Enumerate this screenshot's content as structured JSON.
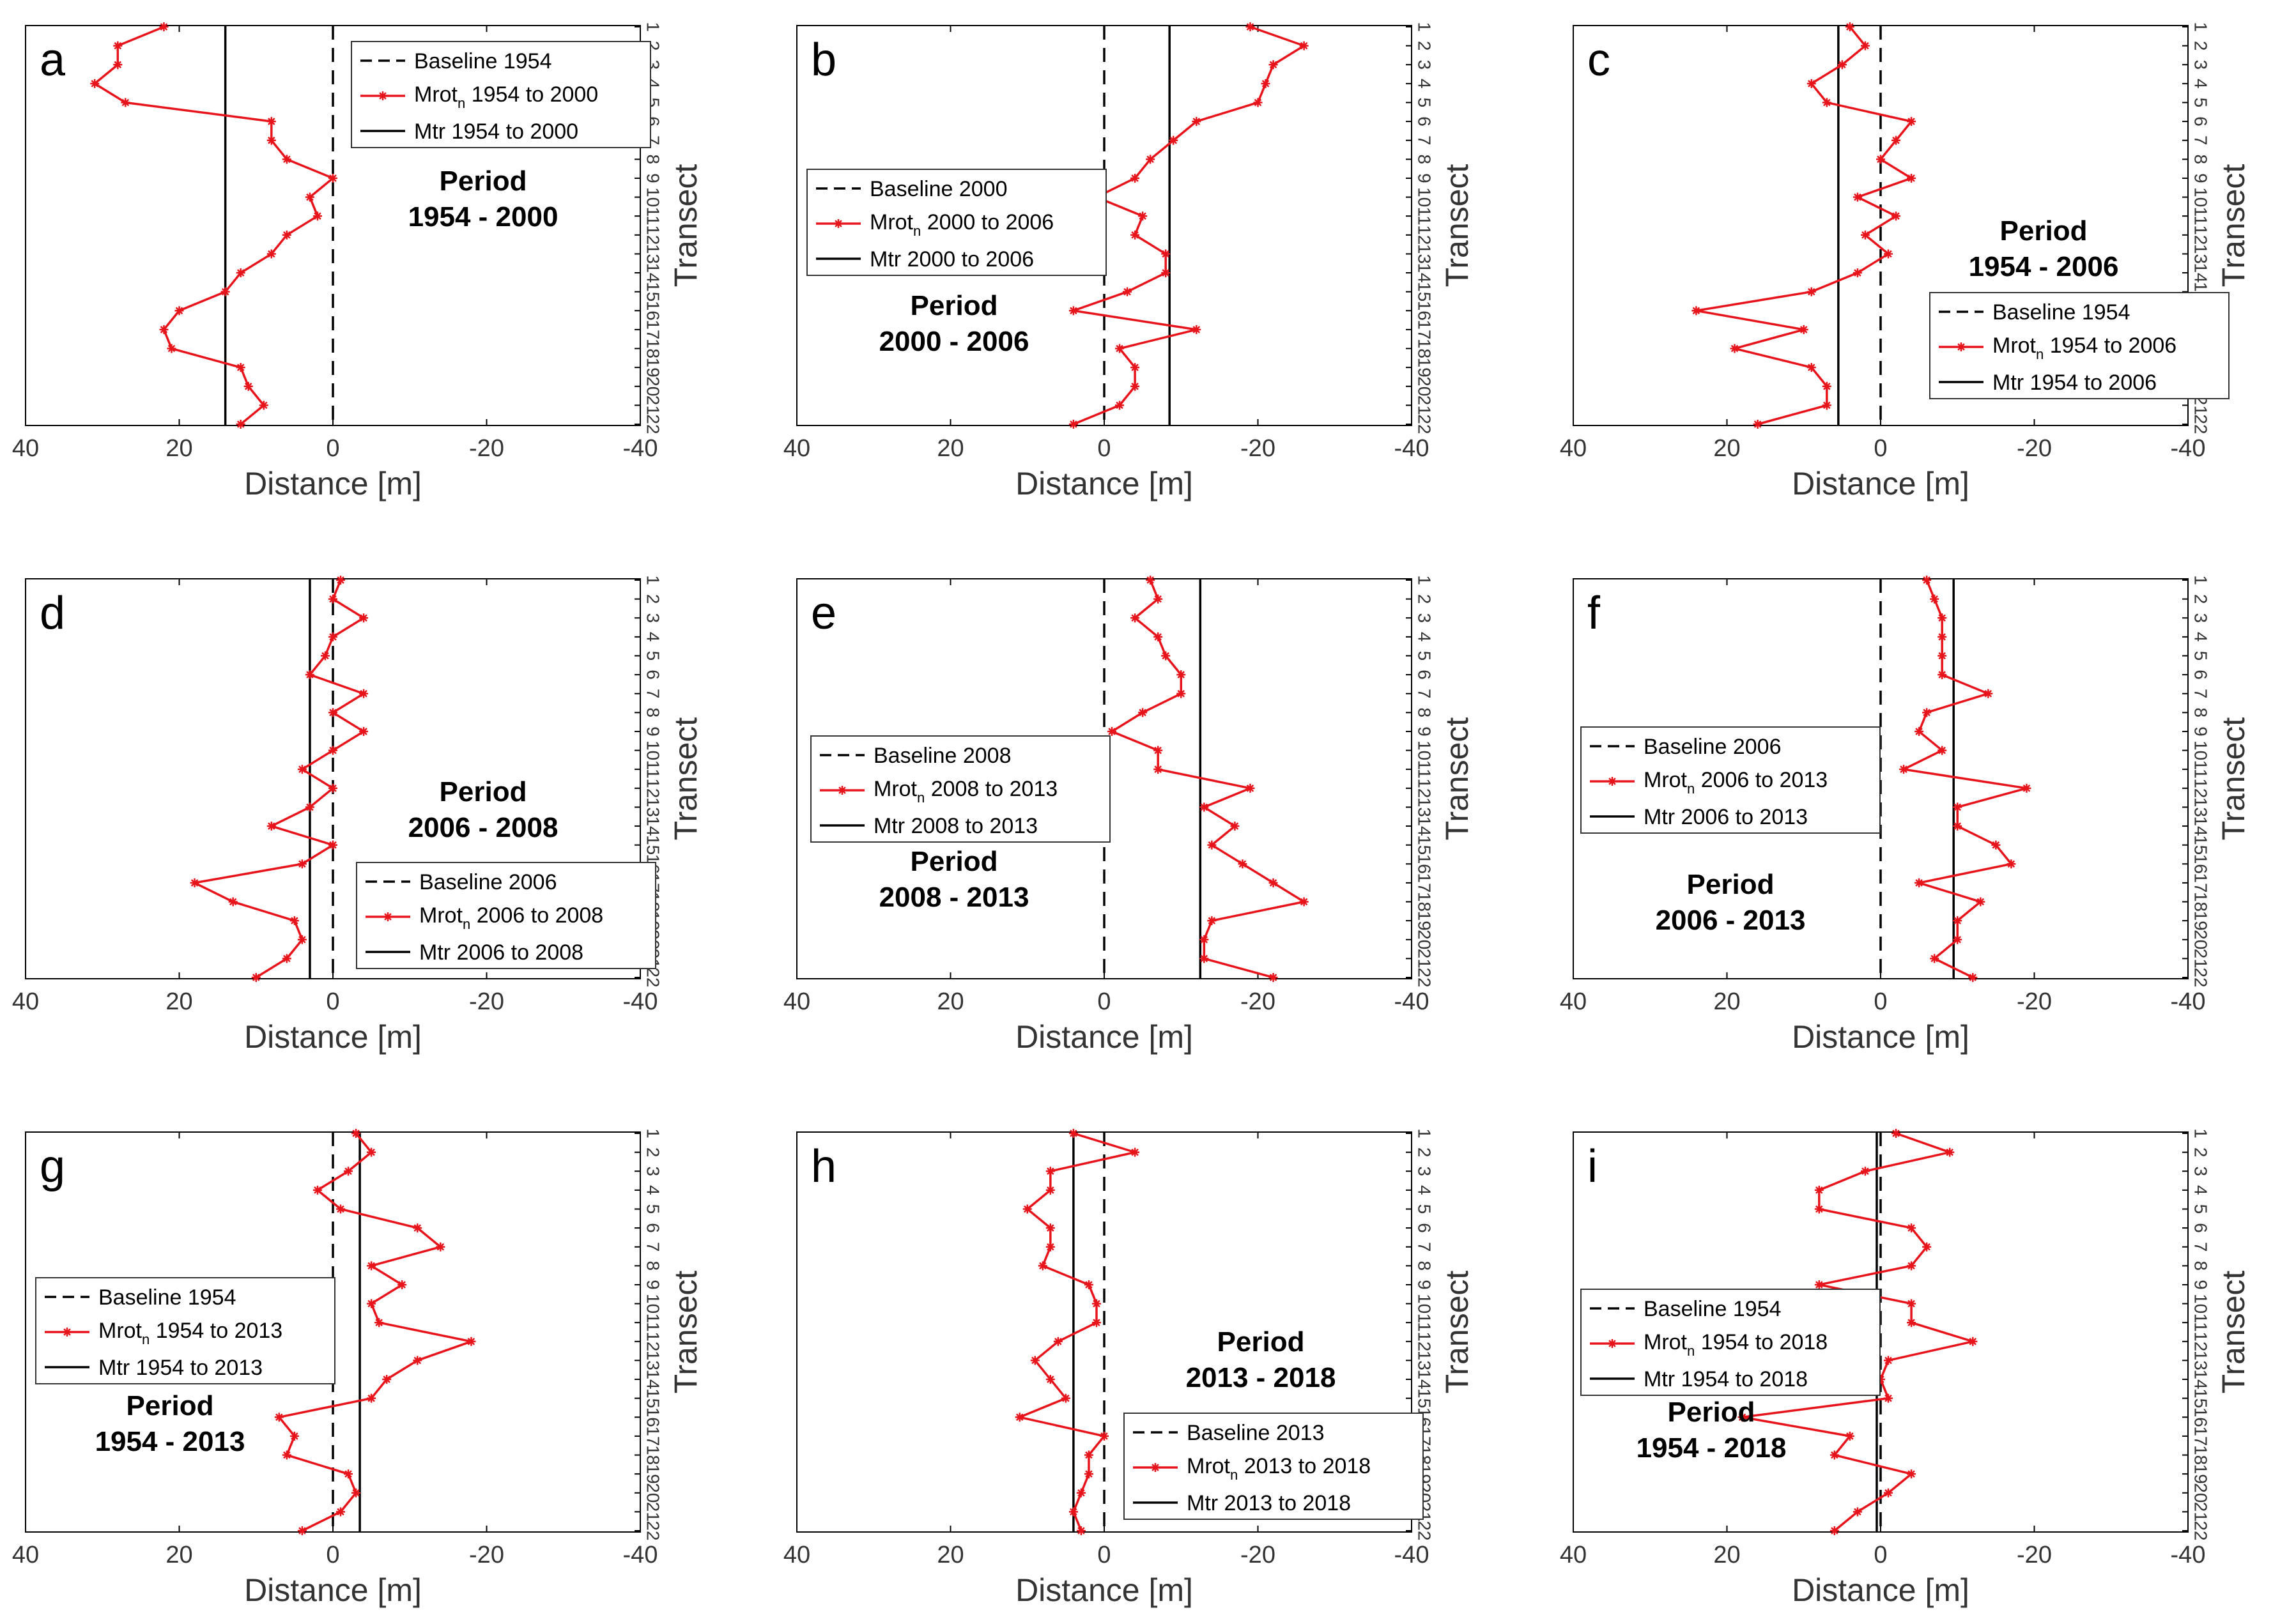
{
  "chart_data": [
    {
      "panel": "a",
      "type": "line",
      "ticks_x": [
        "40",
        "20",
        "0",
        "-20",
        "-40"
      ],
      "xlim": [
        40,
        -40
      ],
      "xlabel": "Distance [m]",
      "ylabel": "Transect",
      "transects": [
        "1",
        "2",
        "3",
        "4",
        "5",
        "6",
        "7",
        "8",
        "9",
        "10",
        "11",
        "12",
        "13",
        "14",
        "15",
        "16",
        "17",
        "18",
        "19",
        "20",
        "21",
        "22"
      ],
      "series_values": [
        22,
        28,
        28,
        31,
        27,
        8,
        8,
        6,
        0,
        3,
        2,
        6,
        8,
        12,
        14,
        20,
        22,
        21,
        12,
        11,
        9,
        12
      ],
      "baseline_value": 0,
      "mtr_value": 14,
      "legend": {
        "baseline": "Baseline 1954",
        "mrot_main": "Mrot",
        "mrot_sub": "n",
        "mrot_rest": " 1954 to 2000",
        "mtr": "Mtr 1954 to 2000"
      },
      "period_title": "Period",
      "period_years": "1954 - 2000"
    },
    {
      "panel": "b",
      "type": "line",
      "ticks_x": [
        "40",
        "20",
        "0",
        "-20",
        "-40"
      ],
      "xlim": [
        40,
        -40
      ],
      "xlabel": "Distance [m]",
      "ylabel": "Transect",
      "transects": [
        "1",
        "2",
        "3",
        "4",
        "5",
        "6",
        "7",
        "8",
        "9",
        "10",
        "11",
        "12",
        "13",
        "14",
        "15",
        "16",
        "17",
        "18",
        "19",
        "20",
        "21",
        "22"
      ],
      "series_values": [
        -19,
        -26,
        -22,
        -21,
        -20,
        -12,
        -9,
        -6,
        -4,
        1,
        -5,
        -4,
        -8,
        -8,
        -3,
        4,
        -12,
        -2,
        -4,
        -4,
        -2,
        4
      ],
      "baseline_value": 0,
      "mtr_value": -8.5,
      "legend": {
        "baseline": "Baseline 2000",
        "mrot_main": "Mrot",
        "mrot_sub": "n",
        "mrot_rest": " 2000 to 2006",
        "mtr": "Mtr 2000 to 2006"
      },
      "period_title": "Period",
      "period_years": "2000 - 2006"
    },
    {
      "panel": "c",
      "type": "line",
      "ticks_x": [
        "40",
        "20",
        "0",
        "-20",
        "-40"
      ],
      "xlim": [
        40,
        -40
      ],
      "xlabel": "Distance [m]",
      "ylabel": "Transect",
      "transects": [
        "1",
        "2",
        "3",
        "4",
        "5",
        "6",
        "7",
        "8",
        "9",
        "10",
        "11",
        "12",
        "13",
        "14",
        "15",
        "16",
        "17",
        "18",
        "19",
        "20",
        "21",
        "22"
      ],
      "series_values": [
        4,
        2,
        5,
        9,
        7,
        -4,
        -2,
        0,
        -4,
        3,
        -2,
        2,
        -1,
        3,
        9,
        24,
        10,
        19,
        9,
        7,
        7,
        16
      ],
      "baseline_value": 0,
      "mtr_value": 5.5,
      "legend": {
        "baseline": "Baseline 1954",
        "mrot_main": "Mrot",
        "mrot_sub": "n",
        "mrot_rest": " 1954 to 2006",
        "mtr": "Mtr 1954 to 2006"
      },
      "period_title": "Period",
      "period_years": "1954 - 2006"
    },
    {
      "panel": "d",
      "type": "line",
      "ticks_x": [
        "40",
        "20",
        "0",
        "-20",
        "-40"
      ],
      "xlim": [
        40,
        -40
      ],
      "xlabel": "Distance [m]",
      "ylabel": "Transect",
      "transects": [
        "1",
        "2",
        "3",
        "4",
        "5",
        "6",
        "7",
        "8",
        "9",
        "10",
        "11",
        "12",
        "13",
        "14",
        "15",
        "16",
        "17",
        "18",
        "19",
        "20",
        "21",
        "22"
      ],
      "series_values": [
        -1,
        0,
        -4,
        0,
        1,
        3,
        -4,
        0,
        -4,
        0,
        4,
        0,
        3,
        8,
        0,
        4,
        18,
        13,
        5,
        4,
        6,
        10
      ],
      "baseline_value": 0,
      "mtr_value": 3,
      "legend": {
        "baseline": "Baseline 2006",
        "mrot_main": "Mrot",
        "mrot_sub": "n",
        "mrot_rest": " 2006 to 2008",
        "mtr": "Mtr 2006 to 2008"
      },
      "period_title": "Period",
      "period_years": "2006 - 2008"
    },
    {
      "panel": "e",
      "type": "line",
      "ticks_x": [
        "40",
        "20",
        "0",
        "-20",
        "-40"
      ],
      "xlim": [
        40,
        -40
      ],
      "xlabel": "Distance [m]",
      "ylabel": "Transect",
      "transects": [
        "1",
        "2",
        "3",
        "4",
        "5",
        "6",
        "7",
        "8",
        "9",
        "10",
        "11",
        "12",
        "13",
        "14",
        "15",
        "16",
        "17",
        "18",
        "19",
        "20",
        "21",
        "22"
      ],
      "series_values": [
        -6,
        -7,
        -4,
        -7,
        -8,
        -10,
        -10,
        -5,
        -1,
        -7,
        -7,
        -19,
        -13,
        -17,
        -14,
        -18,
        -22,
        -26,
        -14,
        -13,
        -13,
        -22
      ],
      "baseline_value": 0,
      "mtr_value": -12.5,
      "legend": {
        "baseline": "Baseline 2008",
        "mrot_main": "Mrot",
        "mrot_sub": "n",
        "mrot_rest": " 2008 to 2013",
        "mtr": "Mtr 2008 to 2013"
      },
      "period_title": "Period",
      "period_years": "2008 - 2013"
    },
    {
      "panel": "f",
      "type": "line",
      "ticks_x": [
        "40",
        "20",
        "0",
        "-20",
        "-40"
      ],
      "xlim": [
        40,
        -40
      ],
      "xlabel": "Distance [m]",
      "ylabel": "Transect",
      "transects": [
        "1",
        "2",
        "3",
        "4",
        "5",
        "6",
        "7",
        "8",
        "9",
        "10",
        "11",
        "12",
        "13",
        "14",
        "15",
        "16",
        "17",
        "18",
        "19",
        "20",
        "21",
        "22"
      ],
      "series_values": [
        -6,
        -7,
        -8,
        -8,
        -8,
        -8,
        -14,
        -6,
        -5,
        -8,
        -3,
        -19,
        -10,
        -10,
        -15,
        -17,
        -5,
        -13,
        -10,
        -10,
        -7,
        -12
      ],
      "baseline_value": 0,
      "mtr_value": -9.5,
      "legend": {
        "baseline": "Baseline 2006",
        "mrot_main": "Mrot",
        "mrot_sub": "n",
        "mrot_rest": " 2006 to 2013",
        "mtr": "Mtr 2006 to 2013"
      },
      "period_title": "Period",
      "period_years": "2006 - 2013"
    },
    {
      "panel": "g",
      "type": "line",
      "ticks_x": [
        "40",
        "20",
        "0",
        "-20",
        "-40"
      ],
      "xlim": [
        40,
        -40
      ],
      "xlabel": "Distance [m]",
      "ylabel": "Transect",
      "transects": [
        "1",
        "2",
        "3",
        "4",
        "5",
        "6",
        "7",
        "8",
        "9",
        "10",
        "11",
        "12",
        "13",
        "14",
        "15",
        "16",
        "17",
        "18",
        "19",
        "20",
        "21",
        "22"
      ],
      "series_values": [
        -3,
        -5,
        -2,
        2,
        -1,
        -11,
        -14,
        -5,
        -9,
        -5,
        -6,
        -18,
        -11,
        -7,
        -5,
        7,
        5,
        6,
        -2,
        -3,
        -1,
        4
      ],
      "baseline_value": 0,
      "mtr_value": -3.5,
      "legend": {
        "baseline": "Baseline 1954",
        "mrot_main": "Mrot",
        "mrot_sub": "n",
        "mrot_rest": " 1954 to 2013",
        "mtr": "Mtr 1954 to 2013"
      },
      "period_title": "Period",
      "period_years": "1954 - 2013"
    },
    {
      "panel": "h",
      "type": "line",
      "ticks_x": [
        "40",
        "20",
        "0",
        "-20",
        "-40"
      ],
      "xlim": [
        40,
        -40
      ],
      "xlabel": "Distance [m]",
      "ylabel": "Transect",
      "transects": [
        "1",
        "2",
        "3",
        "4",
        "5",
        "6",
        "7",
        "8",
        "9",
        "10",
        "11",
        "12",
        "13",
        "14",
        "15",
        "16",
        "17",
        "18",
        "19",
        "20",
        "21",
        "22"
      ],
      "series_values": [
        4,
        -4,
        7,
        7,
        10,
        7,
        7,
        8,
        2,
        1,
        1,
        6,
        9,
        7,
        5,
        11,
        0,
        2,
        2,
        3,
        4,
        3
      ],
      "baseline_value": 0,
      "mtr_value": 4,
      "legend": {
        "baseline": "Baseline 2013",
        "mrot_main": "Mrot",
        "mrot_sub": "n",
        "mrot_rest": " 2013 to 2018",
        "mtr": "Mtr 2013 to 2018"
      },
      "period_title": "Period",
      "period_years": "2013 - 2018"
    },
    {
      "panel": "i",
      "type": "line",
      "ticks_x": [
        "40",
        "20",
        "0",
        "-20",
        "-40"
      ],
      "xlim": [
        40,
        -40
      ],
      "xlabel": "Distance [m]",
      "ylabel": "Transect",
      "transects": [
        "1",
        "2",
        "3",
        "4",
        "5",
        "6",
        "7",
        "8",
        "9",
        "10",
        "11",
        "12",
        "13",
        "14",
        "15",
        "16",
        "17",
        "18",
        "19",
        "20",
        "21",
        "22"
      ],
      "series_values": [
        -2,
        -9,
        2,
        8,
        8,
        -4,
        -6,
        -4,
        8,
        -4,
        -4,
        -12,
        -1,
        0,
        -1,
        18,
        4,
        6,
        -4,
        -1,
        3,
        6
      ],
      "baseline_value": 0,
      "mtr_value": 0.5,
      "legend": {
        "baseline": "Baseline 1954",
        "mrot_main": "Mrot",
        "mrot_sub": "n",
        "mrot_rest": " 1954 to 2018",
        "mtr": "Mtr 1954 to 2018"
      },
      "period_title": "Period",
      "period_years": "1954 - 2018"
    }
  ],
  "colors": {
    "series": "#e8141b",
    "axis": "#000000",
    "baseline": "#000000",
    "mtr": "#000000"
  }
}
